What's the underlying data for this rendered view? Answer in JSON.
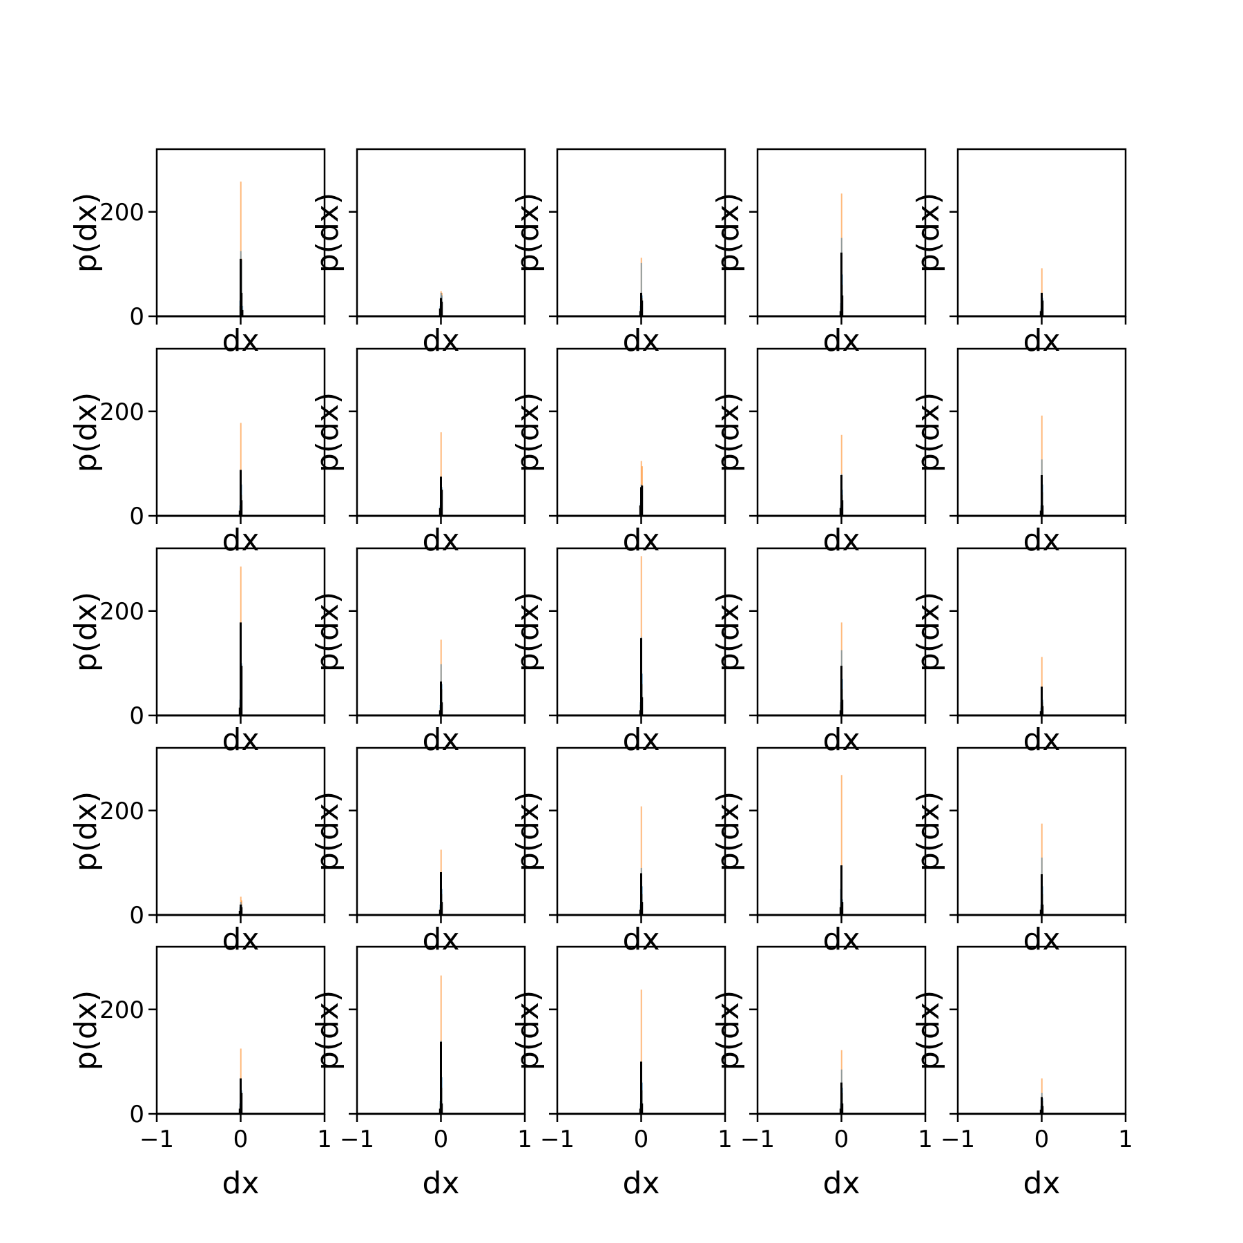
{
  "chart_data": {
    "type": "bar",
    "layout": "grid of histograms, 5 rows x 5 columns, shared axes",
    "xlabel": "dx",
    "ylabel": "p(dx)",
    "xlim": [
      -1,
      1
    ],
    "ylim": [
      0,
      320
    ],
    "xticks": [
      -1,
      0,
      1
    ],
    "xtick_labels": [
      "−1",
      "0",
      "1"
    ],
    "yticks": [
      0,
      200
    ],
    "ytick_labels": [
      "0",
      "200"
    ],
    "grid": false,
    "series_colors": {
      "blue_hist": "#1f77b4",
      "orange_hist": "#ff7f0e",
      "black_line": "#000000"
    },
    "panels": [
      {
        "row": 1,
        "col": 1,
        "bars": [
          {
            "x": 0.0,
            "blue": 125,
            "orange": 258
          },
          {
            "x": 0.01,
            "blue": 108,
            "orange": 110
          },
          {
            "x": -0.01,
            "blue": 30,
            "orange": 20
          },
          {
            "x": 0.02,
            "blue": 20,
            "orange": 10
          }
        ],
        "line": [
          {
            "x": 0.0,
            "y": 110
          },
          {
            "x": 0.01,
            "y": 45
          },
          {
            "x": 0.02,
            "y": 12
          }
        ]
      },
      {
        "row": 1,
        "col": 2,
        "bars": [
          {
            "x": 0.0,
            "blue": 45,
            "orange": 48
          },
          {
            "x": 0.01,
            "blue": 40,
            "orange": 45
          },
          {
            "x": -0.01,
            "blue": 20,
            "orange": 15
          }
        ],
        "line": [
          {
            "x": 0.0,
            "y": 35
          },
          {
            "x": 0.01,
            "y": 28
          },
          {
            "x": -0.01,
            "y": 15
          }
        ]
      },
      {
        "row": 1,
        "col": 3,
        "bars": [
          {
            "x": 0.0,
            "blue": 102,
            "orange": 112
          },
          {
            "x": 0.01,
            "blue": 40,
            "orange": 35
          },
          {
            "x": -0.01,
            "blue": 20,
            "orange": 15
          }
        ],
        "line": [
          {
            "x": 0.0,
            "y": 45
          },
          {
            "x": 0.01,
            "y": 30
          },
          {
            "x": -0.01,
            "y": 10
          }
        ]
      },
      {
        "row": 1,
        "col": 4,
        "bars": [
          {
            "x": 0.0,
            "blue": 150,
            "orange": 235
          },
          {
            "x": 0.01,
            "blue": 80,
            "orange": 60
          },
          {
            "x": -0.01,
            "blue": 25,
            "orange": 20
          }
        ],
        "line": [
          {
            "x": 0.0,
            "y": 122
          },
          {
            "x": 0.01,
            "y": 40
          },
          {
            "x": -0.01,
            "y": 10
          }
        ]
      },
      {
        "row": 1,
        "col": 5,
        "bars": [
          {
            "x": 0.0,
            "blue": 45,
            "orange": 92
          },
          {
            "x": 0.01,
            "blue": 35,
            "orange": 30
          },
          {
            "x": -0.01,
            "blue": 15,
            "orange": 12
          }
        ],
        "line": [
          {
            "x": 0.0,
            "y": 45
          },
          {
            "x": 0.01,
            "y": 30
          },
          {
            "x": -0.01,
            "y": 10
          }
        ]
      },
      {
        "row": 2,
        "col": 1,
        "bars": [
          {
            "x": 0.0,
            "blue": 88,
            "orange": 178
          },
          {
            "x": 0.01,
            "blue": 60,
            "orange": 40
          },
          {
            "x": -0.01,
            "blue": 20,
            "orange": 15
          }
        ],
        "line": [
          {
            "x": 0.0,
            "y": 88
          },
          {
            "x": 0.01,
            "y": 30
          },
          {
            "x": -0.01,
            "y": 10
          }
        ]
      },
      {
        "row": 2,
        "col": 2,
        "bars": [
          {
            "x": 0.0,
            "blue": 75,
            "orange": 160
          },
          {
            "x": 0.01,
            "blue": 55,
            "orange": 40
          },
          {
            "x": -0.01,
            "blue": 20,
            "orange": 15
          }
        ],
        "line": [
          {
            "x": 0.0,
            "y": 75
          },
          {
            "x": 0.01,
            "y": 50
          },
          {
            "x": -0.01,
            "y": 15
          }
        ]
      },
      {
        "row": 2,
        "col": 3,
        "bars": [
          {
            "x": 0.0,
            "blue": 60,
            "orange": 105
          },
          {
            "x": 0.01,
            "blue": 55,
            "orange": 95
          },
          {
            "x": -0.01,
            "blue": 25,
            "orange": 20
          }
        ],
        "line": [
          {
            "x": 0.0,
            "y": 55
          },
          {
            "x": 0.01,
            "y": 58
          },
          {
            "x": -0.01,
            "y": 20
          }
        ]
      },
      {
        "row": 2,
        "col": 4,
        "bars": [
          {
            "x": 0.0,
            "blue": 80,
            "orange": 155
          },
          {
            "x": 0.01,
            "blue": 50,
            "orange": 40
          },
          {
            "x": -0.01,
            "blue": 20,
            "orange": 15
          }
        ],
        "line": [
          {
            "x": 0.0,
            "y": 78
          },
          {
            "x": 0.01,
            "y": 30
          },
          {
            "x": -0.01,
            "y": 15
          }
        ]
      },
      {
        "row": 2,
        "col": 5,
        "bars": [
          {
            "x": 0.0,
            "blue": 108,
            "orange": 192
          },
          {
            "x": 0.01,
            "blue": 60,
            "orange": 45
          },
          {
            "x": -0.01,
            "blue": 20,
            "orange": 15
          }
        ],
        "line": [
          {
            "x": 0.0,
            "y": 78
          },
          {
            "x": 0.01,
            "y": 20
          },
          {
            "x": -0.01,
            "y": 10
          }
        ]
      },
      {
        "row": 3,
        "col": 1,
        "bars": [
          {
            "x": 0.0,
            "blue": 175,
            "orange": 285
          },
          {
            "x": 0.01,
            "blue": 100,
            "orange": 90
          },
          {
            "x": -0.01,
            "blue": 30,
            "orange": 20
          }
        ],
        "line": [
          {
            "x": 0.0,
            "y": 178
          },
          {
            "x": 0.01,
            "y": 95
          },
          {
            "x": -0.01,
            "y": 15
          }
        ]
      },
      {
        "row": 3,
        "col": 2,
        "bars": [
          {
            "x": 0.0,
            "blue": 98,
            "orange": 145
          },
          {
            "x": 0.01,
            "blue": 60,
            "orange": 50
          },
          {
            "x": -0.01,
            "blue": 20,
            "orange": 15
          }
        ],
        "line": [
          {
            "x": 0.0,
            "y": 65
          },
          {
            "x": 0.01,
            "y": 25
          },
          {
            "x": -0.01,
            "y": 10
          }
        ]
      },
      {
        "row": 3,
        "col": 3,
        "bars": [
          {
            "x": 0.0,
            "blue": 150,
            "orange": 305
          },
          {
            "x": 0.01,
            "blue": 80,
            "orange": 60
          },
          {
            "x": -0.01,
            "blue": 25,
            "orange": 20
          }
        ],
        "line": [
          {
            "x": 0.0,
            "y": 148
          },
          {
            "x": 0.01,
            "y": 35
          },
          {
            "x": -0.01,
            "y": 10
          }
        ]
      },
      {
        "row": 3,
        "col": 4,
        "bars": [
          {
            "x": 0.0,
            "blue": 125,
            "orange": 178
          },
          {
            "x": 0.01,
            "blue": 70,
            "orange": 50
          },
          {
            "x": -0.01,
            "blue": 25,
            "orange": 20
          }
        ],
        "line": [
          {
            "x": 0.0,
            "y": 95
          },
          {
            "x": 0.01,
            "y": 30
          },
          {
            "x": -0.01,
            "y": 10
          }
        ]
      },
      {
        "row": 3,
        "col": 5,
        "bars": [
          {
            "x": 0.0,
            "blue": 55,
            "orange": 112
          },
          {
            "x": 0.01,
            "blue": 30,
            "orange": 25
          },
          {
            "x": -0.01,
            "blue": 15,
            "orange": 10
          }
        ],
        "line": [
          {
            "x": 0.0,
            "y": 55
          },
          {
            "x": 0.01,
            "y": 18
          },
          {
            "x": -0.01,
            "y": 8
          }
        ]
      },
      {
        "row": 4,
        "col": 1,
        "bars": [
          {
            "x": 0.0,
            "blue": 25,
            "orange": 35
          },
          {
            "x": 0.01,
            "blue": 20,
            "orange": 28
          },
          {
            "x": -0.01,
            "blue": 15,
            "orange": 12
          }
        ],
        "line": [
          {
            "x": 0.0,
            "y": 20
          },
          {
            "x": 0.01,
            "y": 15
          },
          {
            "x": -0.01,
            "y": 8
          }
        ]
      },
      {
        "row": 4,
        "col": 2,
        "bars": [
          {
            "x": 0.0,
            "blue": 82,
            "orange": 125
          },
          {
            "x": 0.01,
            "blue": 50,
            "orange": 40
          },
          {
            "x": -0.01,
            "blue": 20,
            "orange": 15
          }
        ],
        "line": [
          {
            "x": 0.0,
            "y": 82
          },
          {
            "x": 0.01,
            "y": 25
          },
          {
            "x": -0.01,
            "y": 10
          }
        ]
      },
      {
        "row": 4,
        "col": 3,
        "bars": [
          {
            "x": 0.0,
            "blue": 90,
            "orange": 208
          },
          {
            "x": 0.01,
            "blue": 55,
            "orange": 40
          },
          {
            "x": -0.01,
            "blue": 20,
            "orange": 15
          }
        ],
        "line": [
          {
            "x": 0.0,
            "y": 80
          },
          {
            "x": 0.01,
            "y": 25
          },
          {
            "x": -0.01,
            "y": 10
          }
        ]
      },
      {
        "row": 4,
        "col": 4,
        "bars": [
          {
            "x": 0.0,
            "blue": 95,
            "orange": 268
          },
          {
            "x": -0.01,
            "blue": 50,
            "orange": 20
          },
          {
            "x": 0.01,
            "blue": 30,
            "orange": 25
          }
        ],
        "line": [
          {
            "x": 0.0,
            "y": 95
          },
          {
            "x": 0.01,
            "y": 25
          },
          {
            "x": -0.01,
            "y": 15
          }
        ]
      },
      {
        "row": 4,
        "col": 5,
        "bars": [
          {
            "x": 0.0,
            "blue": 110,
            "orange": 175
          },
          {
            "x": 0.01,
            "blue": 55,
            "orange": 40
          },
          {
            "x": -0.01,
            "blue": 20,
            "orange": 15
          }
        ],
        "line": [
          {
            "x": 0.0,
            "y": 78
          },
          {
            "x": 0.01,
            "y": 20
          },
          {
            "x": -0.01,
            "y": 10
          }
        ]
      },
      {
        "row": 5,
        "col": 1,
        "bars": [
          {
            "x": 0.0,
            "blue": 65,
            "orange": 125
          },
          {
            "x": 0.01,
            "blue": 45,
            "orange": 35
          },
          {
            "x": -0.01,
            "blue": 20,
            "orange": 15
          }
        ],
        "line": [
          {
            "x": 0.0,
            "y": 68
          },
          {
            "x": 0.01,
            "y": 40
          },
          {
            "x": -0.01,
            "y": 10
          }
        ]
      },
      {
        "row": 5,
        "col": 2,
        "bars": [
          {
            "x": 0.0,
            "blue": 140,
            "orange": 265
          },
          {
            "x": 0.01,
            "blue": 70,
            "orange": 50
          },
          {
            "x": -0.01,
            "blue": 25,
            "orange": 20
          }
        ],
        "line": [
          {
            "x": 0.0,
            "y": 138
          },
          {
            "x": 0.01,
            "y": 20
          },
          {
            "x": -0.01,
            "y": 10
          }
        ]
      },
      {
        "row": 5,
        "col": 3,
        "bars": [
          {
            "x": 0.0,
            "blue": 100,
            "orange": 238
          },
          {
            "x": 0.01,
            "blue": 60,
            "orange": 45
          },
          {
            "x": -0.01,
            "blue": 20,
            "orange": 15
          }
        ],
        "line": [
          {
            "x": 0.0,
            "y": 100
          },
          {
            "x": 0.01,
            "y": 20
          },
          {
            "x": -0.01,
            "y": 10
          }
        ]
      },
      {
        "row": 5,
        "col": 4,
        "bars": [
          {
            "x": 0.0,
            "blue": 85,
            "orange": 122
          },
          {
            "x": 0.01,
            "blue": 50,
            "orange": 40
          },
          {
            "x": -0.01,
            "blue": 20,
            "orange": 15
          }
        ],
        "line": [
          {
            "x": 0.0,
            "y": 60
          },
          {
            "x": 0.01,
            "y": 20
          },
          {
            "x": -0.01,
            "y": 10
          }
        ]
      },
      {
        "row": 5,
        "col": 5,
        "bars": [
          {
            "x": 0.0,
            "blue": 40,
            "orange": 68
          },
          {
            "x": 0.01,
            "blue": 30,
            "orange": 25
          },
          {
            "x": -0.01,
            "blue": 15,
            "orange": 10
          }
        ],
        "line": [
          {
            "x": 0.0,
            "y": 32
          },
          {
            "x": 0.01,
            "y": 15
          },
          {
            "x": -0.01,
            "y": 8
          }
        ]
      }
    ]
  }
}
